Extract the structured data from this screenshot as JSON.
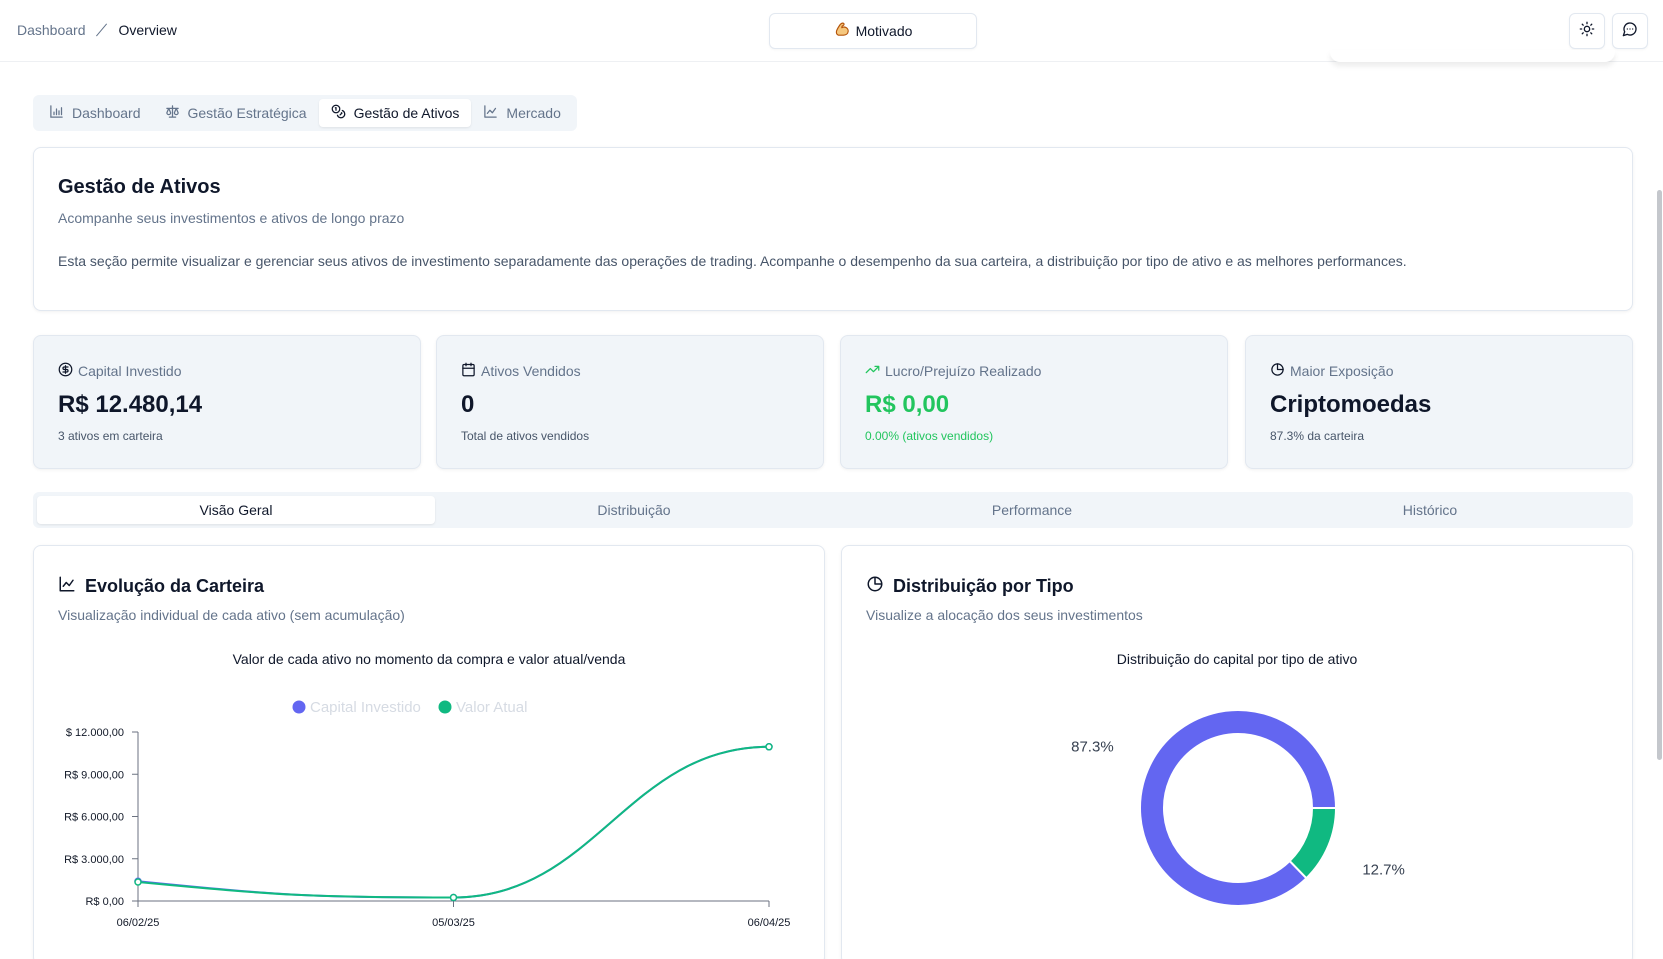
{
  "header": {
    "breadcrumb": {
      "root": "Dashboard",
      "current": "Overview"
    },
    "mood": {
      "label": "Motivado",
      "icon": "flexed-biceps-icon"
    }
  },
  "main_tabs": [
    {
      "label": "Dashboard",
      "icon": "bar-chart-icon",
      "active": false
    },
    {
      "label": "Gestão Estratégica",
      "icon": "scale-icon",
      "active": false
    },
    {
      "label": "Gestão de Ativos",
      "icon": "coins-icon",
      "active": true
    },
    {
      "label": "Mercado",
      "icon": "line-chart-icon",
      "active": false
    }
  ],
  "intro": {
    "title": "Gestão de Ativos",
    "subtitle": "Acompanhe seus investimentos e ativos de longo prazo",
    "description": "Esta seção permite visualizar e gerenciar seus ativos de investimento separadamente das operações de trading. Acompanhe o desempenho da sua carteira, a distribuição por tipo de ativo e as melhores performances."
  },
  "stats": [
    {
      "label": "Capital Investido",
      "value": "R$ 12.480,14",
      "note": "3 ativos em carteira",
      "icon": "dollar-circle-icon"
    },
    {
      "label": "Ativos Vendidos",
      "value": "0",
      "note": "Total de ativos vendidos",
      "icon": "calendar-icon"
    },
    {
      "label": "Lucro/Prejuízo Realizado",
      "value": "R$ 0,00",
      "note": "0.00% (ativos vendidos)",
      "icon": "trending-up-icon",
      "color": "#22c55e"
    },
    {
      "label": "Maior Exposição",
      "value": "Criptomoedas",
      "note": "87.3% da carteira",
      "icon": "pie-chart-icon"
    }
  ],
  "sub_tabs": [
    {
      "label": "Visão Geral",
      "active": true
    },
    {
      "label": "Distribuição",
      "active": false
    },
    {
      "label": "Performance",
      "active": false
    },
    {
      "label": "Histórico",
      "active": false
    }
  ],
  "evolution": {
    "title": "Evolução da Carteira",
    "subtitle": "Visualização individual de cada ativo (sem acumulação)",
    "caption": "Valor de cada ativo no momento da compra e valor atual/venda"
  },
  "distribution": {
    "title": "Distribuição por Tipo",
    "subtitle": "Visualize a alocação dos seus investimentos",
    "caption": "Distribuição do capital por tipo de ativo"
  },
  "chart_data": [
    {
      "type": "line",
      "title": "Valor de cada ativo no momento da compra e valor atual/venda",
      "x": [
        "06/02/25",
        "05/03/25",
        "06/04/25"
      ],
      "yticks": [
        "R$ 0,00",
        "R$ 3.000,00",
        "R$ 6.000,00",
        "R$ 9.000,00",
        "$ 12.000,00"
      ],
      "ylim": [
        0,
        12000
      ],
      "legend_position": "top",
      "series": [
        {
          "name": "Capital Investido",
          "color": "#6366f1",
          "values": [
            1400,
            250,
            10950
          ]
        },
        {
          "name": "Valor Atual",
          "color": "#10b981",
          "values": [
            1350,
            250,
            10950
          ]
        }
      ]
    },
    {
      "type": "pie",
      "variant": "doughnut",
      "title": "Distribuição do capital por tipo de ativo",
      "slices": [
        {
          "label": "87.3%",
          "value": 87.3,
          "color": "#6366f1"
        },
        {
          "label": "12.7%",
          "value": 12.7,
          "color": "#10b981"
        }
      ]
    }
  ]
}
